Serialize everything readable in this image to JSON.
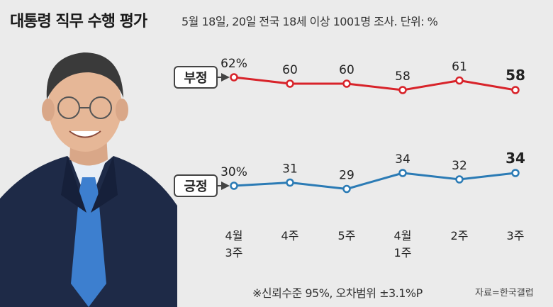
{
  "header": {
    "title": "대통령 직무 수행 평가",
    "subtitle": "5월 18일, 20일 전국 18세 이상 1001명 조사. 단위: %"
  },
  "footer": {
    "note": "※신뢰수준 95%, 오차범위 ±3.1%P",
    "source": "자료=한국갤럽"
  },
  "chart_data": {
    "type": "line",
    "categories": [
      [
        "4월",
        "3주"
      ],
      [
        "4주"
      ],
      [
        "5주"
      ],
      [
        "4월",
        "1주"
      ],
      [
        "2주"
      ],
      [
        "3주"
      ]
    ],
    "series": [
      {
        "name": "부정",
        "values": [
          62,
          60,
          60,
          58,
          61,
          58
        ],
        "labels": [
          "62%",
          "60",
          "60",
          "58",
          "61",
          "58"
        ],
        "color": "#d8232a"
      },
      {
        "name": "긍정",
        "values": [
          30,
          31,
          29,
          34,
          32,
          34
        ],
        "labels": [
          "30%",
          "31",
          "29",
          "34",
          "32",
          "34"
        ],
        "color": "#2b7bb5"
      }
    ],
    "legend_placement": "left of each line",
    "grid": false
  }
}
